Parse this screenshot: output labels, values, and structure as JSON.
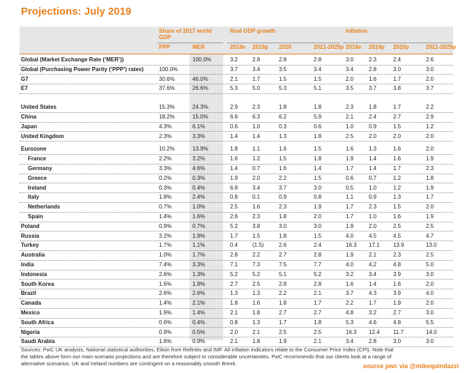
{
  "header": {
    "title": "Projections: July 2019"
  },
  "groups": [
    "Share of 2017 world GDP",
    "Real GDP growth",
    "Inflation"
  ],
  "subheaders": [
    "PPP",
    "MER",
    "2018e",
    "2019p",
    "2020",
    "2021-2025p",
    "2018e",
    "2019p",
    "2020p",
    "2021-2025p"
  ],
  "rows": [
    {
      "name": "Global (Market Exchange Rate (‘MER’))",
      "values": [
        "",
        "100.0%",
        "3.2",
        "2.8",
        "2.8",
        "2.8",
        "3.0",
        "2.3",
        "2.4",
        "2.6"
      ]
    },
    {
      "name": "Global (Purchasing Power Parity (‘PPP’) rates)",
      "values": [
        "100.0%",
        "",
        "3.7",
        "3.4",
        "3.5",
        "3.4",
        "3.4",
        "2.8",
        "3.0",
        "3.0"
      ]
    },
    {
      "name": "G7",
      "values": [
        "30.6%",
        "46.0%",
        "2.1",
        "1.7",
        "1.5",
        "1.5",
        "2.0",
        "1.6",
        "1.7",
        "2.0"
      ]
    },
    {
      "name": "E7",
      "values": [
        "37.6%",
        "26.6%",
        "5.3",
        "5.0",
        "5.3",
        "5.1",
        "3.5",
        "3.7",
        "3.8",
        "3.7"
      ]
    },
    {
      "name": "United States",
      "values": [
        "15.3%",
        "24.3%",
        "2.9",
        "2.3",
        "1.8",
        "1.8",
        "2.3",
        "1.8",
        "1.7",
        "2.2"
      ]
    },
    {
      "name": "China",
      "values": [
        "18.2%",
        "15.0%",
        "6.6",
        "6.3",
        "6.2",
        "5.9",
        "2.1",
        "2.4",
        "2.7",
        "2.9"
      ]
    },
    {
      "name": "Japan",
      "values": [
        "4.3%",
        "6.1%",
        "0.6",
        "1.0",
        "0.3",
        "0.6",
        "1.0",
        "0.9",
        "1.5",
        "1.2"
      ]
    },
    {
      "name": "United Kingdom",
      "values": [
        "2.3%",
        "3.3%",
        "1.4",
        "1.4",
        "1.3",
        "1.8",
        "2.5",
        "2.0",
        "2.0",
        "2.0"
      ]
    },
    {
      "name": "Eurozone",
      "values": [
        "10.2%",
        "13.9%",
        "1.8",
        "1.1",
        "1.6",
        "1.5",
        "1.6",
        "1.3",
        "1.6",
        "2.0"
      ]
    },
    {
      "name": "France",
      "values": [
        "2.2%",
        "3.2%",
        "1.6",
        "1.2",
        "1.5",
        "1.8",
        "1.9",
        "1.4",
        "1.6",
        "1.9"
      ]
    },
    {
      "name": "Germany",
      "values": [
        "3.3%",
        "4.6%",
        "1.4",
        "0.7",
        "1.6",
        "1.4",
        "1.7",
        "1.4",
        "1.7",
        "2.3"
      ]
    },
    {
      "name": "Greece",
      "values": [
        "0.2%",
        "0.3%",
        "1.9",
        "2.0",
        "2.2",
        "1.5",
        "0.6",
        "0.7",
        "1.2",
        "1.8"
      ]
    },
    {
      "name": "Ireland",
      "values": [
        "0.3%",
        "0.4%",
        "6.8",
        "3.4",
        "3.7",
        "3.0",
        "0.5",
        "1.0",
        "1.2",
        "1.9"
      ]
    },
    {
      "name": "Italy",
      "values": [
        "1.8%",
        "2.4%",
        "0.8",
        "0.1",
        "0.9",
        "0.8",
        "1.1",
        "0.9",
        "1.3",
        "1.7"
      ]
    },
    {
      "name": "Netherlands",
      "values": [
        "0.7%",
        "1.0%",
        "2.5",
        "1.6",
        "2.3",
        "1.9",
        "1.7",
        "2.3",
        "1.5",
        "2.0"
      ]
    },
    {
      "name": "Spain",
      "values": [
        "1.4%",
        "1.6%",
        "2.6",
        "2.3",
        "1.8",
        "2.0",
        "1.7",
        "1.0",
        "1.6",
        "1.9"
      ]
    },
    {
      "name": "Poland",
      "values": [
        "0.9%",
        "0.7%",
        "5.2",
        "3.8",
        "3.0",
        "3.0",
        "1.9",
        "2.0",
        "2.5",
        "2.5"
      ]
    },
    {
      "name": "Russia",
      "values": [
        "3.2%",
        "1.9%",
        "1.7",
        "1.5",
        "1.8",
        "1.5",
        "4.0",
        "4.5",
        "4.5",
        "4.7"
      ]
    },
    {
      "name": "Turkey",
      "values": [
        "1.7%",
        "1.1%",
        "0.4",
        "(1.5)",
        "2.6",
        "2.4",
        "16.3",
        "17.1",
        "13.9",
        "13.0"
      ]
    },
    {
      "name": "Australia",
      "values": [
        "1.0%",
        "1.7%",
        "2.8",
        "2.2",
        "2.7",
        "2.8",
        "1.9",
        "2.1",
        "2.3",
        "2.5"
      ]
    },
    {
      "name": "India",
      "values": [
        "7.4%",
        "3.3%",
        "7.1",
        "7.3",
        "7.5",
        "7.7",
        "4.0",
        "4.2",
        "4.8",
        "5.0"
      ]
    },
    {
      "name": "Indonesia",
      "values": [
        "2.6%",
        "1.3%",
        "5.2",
        "5.2",
        "5.1",
        "5.2",
        "3.2",
        "3.4",
        "3.9",
        "3.0"
      ]
    },
    {
      "name": "South Korea",
      "values": [
        "1.6%",
        "1.9%",
        "2.7",
        "2.5",
        "2.8",
        "2.8",
        "1.6",
        "1.4",
        "1.6",
        "2.0"
      ]
    },
    {
      "name": "Brazil",
      "values": [
        "2.6%",
        "2.6%",
        "1.3",
        "1.3",
        "2.2",
        "2.1",
        "3.7",
        "4.3",
        "3.9",
        "4.0"
      ]
    },
    {
      "name": "Canada",
      "values": [
        "1.4%",
        "2.1%",
        "1.8",
        "1.6",
        "1.8",
        "1.7",
        "2.2",
        "1.7",
        "1.9",
        "2.0"
      ]
    },
    {
      "name": "Mexico",
      "values": [
        "1.9%",
        "1.4%",
        "2.1",
        "1.8",
        "2.7",
        "2.7",
        "4.8",
        "3.2",
        "2.7",
        "3.0"
      ]
    },
    {
      "name": "South Africa",
      "values": [
        "0.6%",
        "0.4%",
        "0.8",
        "1.3",
        "1.7",
        "1.8",
        "5.3",
        "4.6",
        "4.8",
        "5.5"
      ]
    },
    {
      "name": "Nigeria",
      "values": [
        "0.9%",
        "0.5%",
        "2.0",
        "2.1",
        "2.5",
        "2.5",
        "16.3",
        "12.4",
        "11.7",
        "14.0"
      ]
    },
    {
      "name": "Saudi Arabia",
      "values": [
        "1.6%",
        "0.9%",
        "2.1",
        "1.8",
        "1.9",
        "2.1",
        "3.4",
        "2.8",
        "3.0",
        "3.0"
      ]
    }
  ],
  "footnote": "Sources: PwC UK analysis, National statistical authorities, Eikon from Refinitiv and IMF. All inflation indicators relate to the Consumer Price Index (CPI). Note that the tables above form our main scenario projections and are therefore subject to considerable uncertainties. PwC recommends that our clients look at a range of alternative scenarios. UK and Ireland numbers are contingent on a reasonably smooth Brexit.",
  "credit": "source pwc via @mikequindazzi"
}
